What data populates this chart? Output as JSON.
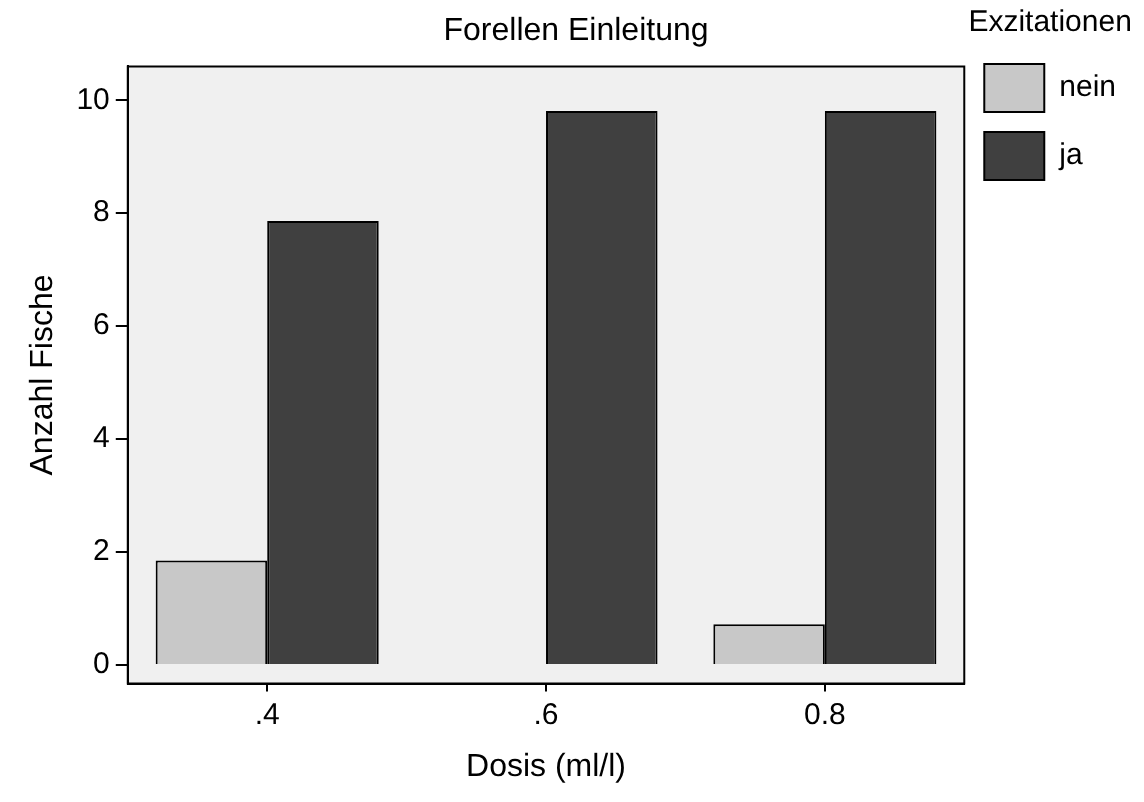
{
  "chart_data": {
    "type": "bar",
    "title": "Forellen Einleitung",
    "xlabel": "Dosis (ml/l)",
    "ylabel": "Anzahl Fische",
    "legend_title": "Exzitationen",
    "categories": [
      ".4",
      ".6",
      "0.8"
    ],
    "series": [
      {
        "name": "nein",
        "color": "#c8c8c8",
        "values": [
          1.85,
          null,
          0.72
        ]
      },
      {
        "name": "ja",
        "color": "#404040",
        "values": [
          7.86,
          9.81,
          9.81
        ]
      }
    ],
    "ylim": [
      -0.33,
      10.6
    ],
    "yticks": [
      0,
      2,
      4,
      6,
      8,
      10
    ],
    "grid": false,
    "legend": "top right"
  }
}
